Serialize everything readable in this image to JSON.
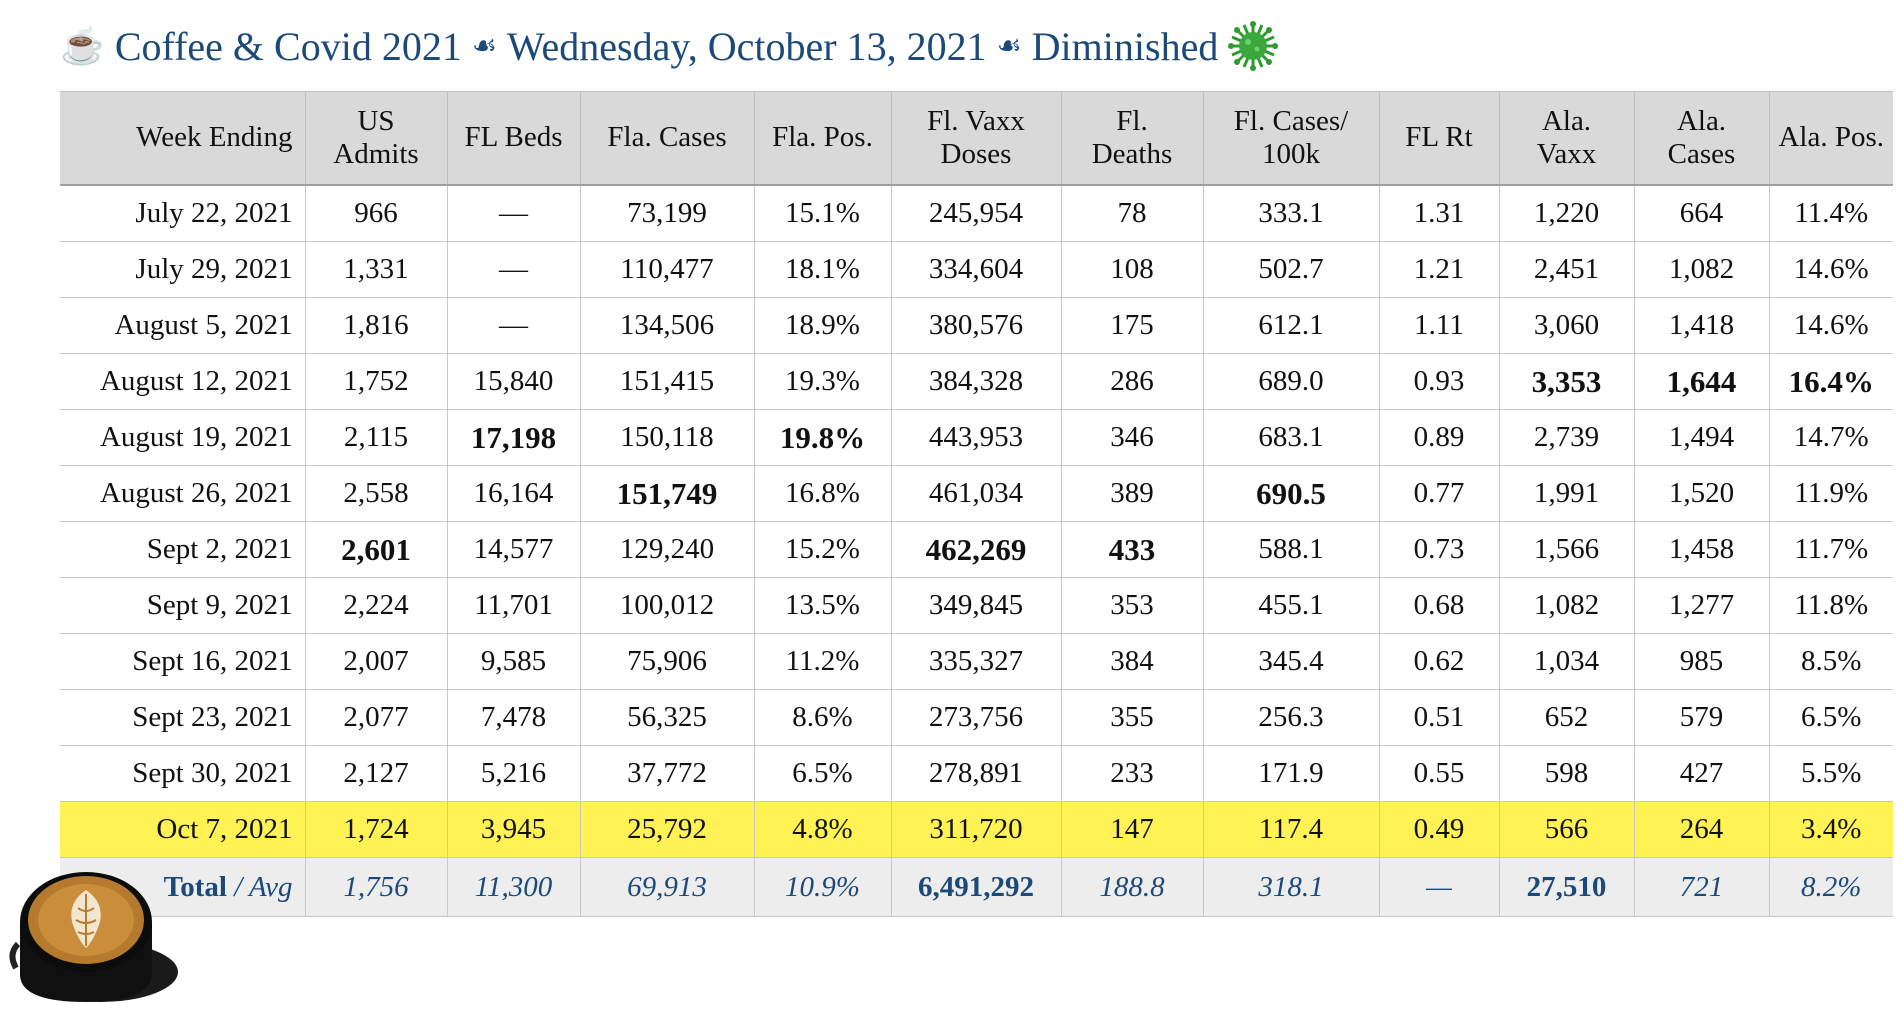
{
  "header": {
    "cup_glyph": "☕",
    "part1": "Coffee & Covid 2021",
    "sep": "☙",
    "part2": "Wednesday, October 13, 2021",
    "part3": "Diminished"
  },
  "table": {
    "columns": [
      [
        "Week Ending"
      ],
      [
        "US",
        "Admits"
      ],
      [
        "FL Beds"
      ],
      [
        "Fla. Cases"
      ],
      [
        "Fla. Pos."
      ],
      [
        "Fl. Vaxx",
        "Doses"
      ],
      [
        "Fl.",
        "Deaths"
      ],
      [
        "Fl. Cases/",
        "100k"
      ],
      [
        "FL Rt"
      ],
      [
        "Ala.",
        "Vaxx"
      ],
      [
        "Ala.",
        "Cases"
      ],
      [
        "Ala. Pos."
      ]
    ],
    "rows": [
      [
        "July 22, 2021",
        "966",
        "—",
        "73,199",
        "15.1%",
        "245,954",
        "78",
        "333.1",
        "1.31",
        "1,220",
        "664",
        "11.4%"
      ],
      [
        "July 29, 2021",
        "1,331",
        "—",
        "110,477",
        "18.1%",
        "334,604",
        "108",
        "502.7",
        "1.21",
        "2,451",
        "1,082",
        "14.6%"
      ],
      [
        "August 5, 2021",
        "1,816",
        "—",
        "134,506",
        "18.9%",
        "380,576",
        "175",
        "612.1",
        "1.11",
        "3,060",
        "1,418",
        "14.6%"
      ],
      [
        "August 12, 2021",
        "1,752",
        "15,840",
        "151,415",
        "19.3%",
        "384,328",
        "286",
        "689.0",
        "0.93",
        "3,353",
        "1,644",
        "16.4%"
      ],
      [
        "August 19, 2021",
        "2,115",
        "17,198",
        "150,118",
        "19.8%",
        "443,953",
        "346",
        "683.1",
        "0.89",
        "2,739",
        "1,494",
        "14.7%"
      ],
      [
        "August 26, 2021",
        "2,558",
        "16,164",
        "151,749",
        "16.8%",
        "461,034",
        "389",
        "690.5",
        "0.77",
        "1,991",
        "1,520",
        "11.9%"
      ],
      [
        "Sept 2, 2021",
        "2,601",
        "14,577",
        "129,240",
        "15.2%",
        "462,269",
        "433",
        "588.1",
        "0.73",
        "1,566",
        "1,458",
        "11.7%"
      ],
      [
        "Sept 9, 2021",
        "2,224",
        "11,701",
        "100,012",
        "13.5%",
        "349,845",
        "353",
        "455.1",
        "0.68",
        "1,082",
        "1,277",
        "11.8%"
      ],
      [
        "Sept 16, 2021",
        "2,007",
        "9,585",
        "75,906",
        "11.2%",
        "335,327",
        "384",
        "345.4",
        "0.62",
        "1,034",
        "985",
        "8.5%"
      ],
      [
        "Sept 23, 2021",
        "2,077",
        "7,478",
        "56,325",
        "8.6%",
        "273,756",
        "355",
        "256.3",
        "0.51",
        "652",
        "579",
        "6.5%"
      ],
      [
        "Sept 30, 2021",
        "2,127",
        "5,216",
        "37,772",
        "6.5%",
        "278,891",
        "233",
        "171.9",
        "0.55",
        "598",
        "427",
        "5.5%"
      ],
      [
        "Oct 7, 2021",
        "1,724",
        "3,945",
        "25,792",
        "4.8%",
        "311,720",
        "147",
        "117.4",
        "0.49",
        "566",
        "264",
        "3.4%"
      ]
    ],
    "bold_cells": [
      [
        3,
        9
      ],
      [
        3,
        10
      ],
      [
        3,
        11
      ],
      [
        4,
        2
      ],
      [
        4,
        4
      ],
      [
        5,
        3
      ],
      [
        5,
        7
      ],
      [
        6,
        1
      ],
      [
        6,
        5
      ],
      [
        6,
        6
      ]
    ],
    "highlight_row_index": 11,
    "highlight_color": "#fef254",
    "total": {
      "label_bold": "Total",
      "label_rest": " / Avg",
      "values": [
        "1,756",
        "11,300",
        "69,913",
        "10.9%",
        "6,491,292",
        "188.8",
        "318.1",
        "—",
        "27,510",
        "721",
        "8.2%"
      ],
      "bold_value_indices": [
        4,
        8
      ]
    }
  },
  "colors": {
    "title": "#1b4a7a",
    "header_bg": "#d9d9d9",
    "total_bg": "#ededed",
    "virus": "#2e9b2e"
  },
  "icons": {
    "cup": "coffee-cup-icon",
    "separator": "floral-heart-icon",
    "virus": "virus-icon",
    "coffee_photo": "latte-cup-image"
  }
}
